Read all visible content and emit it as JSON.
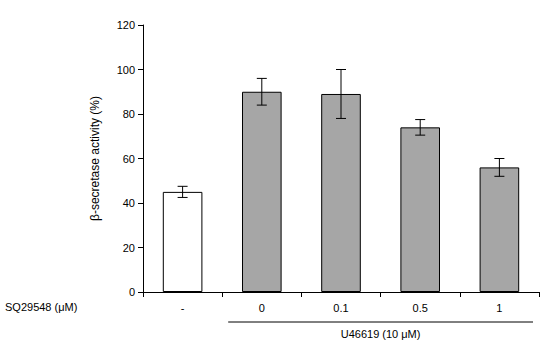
{
  "chart_data": {
    "type": "bar",
    "y_label": "β-secretase activity (%)",
    "x_label": "SQ29548 (μM)",
    "categories": [
      "-",
      "0",
      "0.1",
      "0.5",
      "1"
    ],
    "values": [
      45,
      90,
      89,
      74,
      56
    ],
    "errors": [
      2.5,
      6,
      11,
      3.5,
      4
    ],
    "colors": [
      "#ffffff",
      "#a6a6a6",
      "#a6a6a6",
      "#a6a6a6",
      "#a6a6a6"
    ],
    "annotations": [
      {
        "text": "U46619 (10 μM)",
        "categories": [
          "0",
          "0.1",
          "0.5",
          "1"
        ]
      }
    ],
    "ylim": [
      0,
      120
    ],
    "yticks": [
      0,
      20,
      40,
      60,
      80,
      100,
      120
    ],
    "grid": false
  }
}
